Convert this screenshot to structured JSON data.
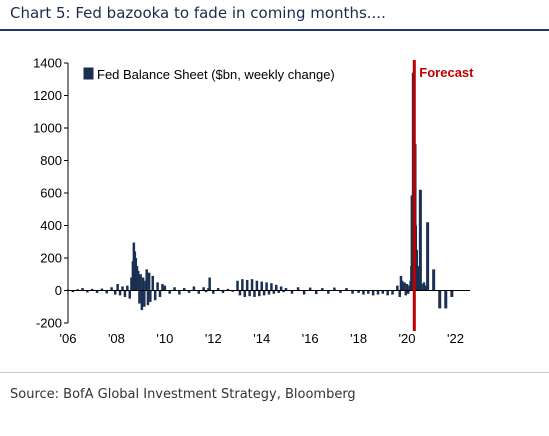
{
  "header": {
    "title": "Chart 5: Fed bazooka to fade in coming months...."
  },
  "footer": {
    "source": "Source: BofA Global Investment Strategy, Bloomberg"
  },
  "colors": {
    "bars": "#1b2f52",
    "forecast": "#c00000",
    "title": "#1a2b4a",
    "rule": "#1f3864"
  },
  "chart_data": {
    "type": "bar",
    "title": "Chart 5: Fed bazooka to fade in coming months....",
    "xlabel": "",
    "ylabel": "",
    "ylim": [
      -200,
      1400
    ],
    "xlim": [
      2006.0,
      2022.6
    ],
    "yticks": [
      1400,
      1200,
      1000,
      800,
      600,
      400,
      200,
      0,
      -200
    ],
    "ytick_labels": [
      "1400",
      "1200",
      "1000",
      "800",
      "600",
      "400",
      "200",
      "0",
      "-200"
    ],
    "xticks": [
      2006,
      2008,
      2010,
      2012,
      2014,
      2016,
      2018,
      2020,
      2022
    ],
    "xtick_labels": [
      "'06",
      "'08",
      "'10",
      "'12",
      "'14",
      "'16",
      "'18",
      "'20",
      "'22"
    ],
    "grid": false,
    "legend": {
      "position": "top-left",
      "entries": [
        "Fed Balance Sheet ($bn, weekly change)"
      ]
    },
    "annotations": [
      {
        "text": "Forecast",
        "x": 2020.3,
        "type": "vertical-line"
      }
    ],
    "series": [
      {
        "name": "Fed Balance Sheet ($bn, weekly change)",
        "points": [
          [
            2006.0,
            5
          ],
          [
            2006.2,
            -10
          ],
          [
            2006.4,
            8
          ],
          [
            2006.6,
            15
          ],
          [
            2006.8,
            -12
          ],
          [
            2007.0,
            10
          ],
          [
            2007.2,
            -15
          ],
          [
            2007.4,
            12
          ],
          [
            2007.6,
            -18
          ],
          [
            2007.8,
            20
          ],
          [
            2007.95,
            -25
          ],
          [
            2008.05,
            40
          ],
          [
            2008.15,
            -30
          ],
          [
            2008.25,
            25
          ],
          [
            2008.35,
            -40
          ],
          [
            2008.45,
            30
          ],
          [
            2008.55,
            -50
          ],
          [
            2008.62,
            80
          ],
          [
            2008.68,
            180
          ],
          [
            2008.72,
            295
          ],
          [
            2008.76,
            240
          ],
          [
            2008.8,
            200
          ],
          [
            2008.85,
            150
          ],
          [
            2008.9,
            120
          ],
          [
            2008.95,
            -80
          ],
          [
            2009.0,
            100
          ],
          [
            2009.05,
            -120
          ],
          [
            2009.1,
            80
          ],
          [
            2009.15,
            -100
          ],
          [
            2009.2,
            60
          ],
          [
            2009.25,
            130
          ],
          [
            2009.3,
            -90
          ],
          [
            2009.35,
            110
          ],
          [
            2009.4,
            -70
          ],
          [
            2009.5,
            90
          ],
          [
            2009.6,
            -60
          ],
          [
            2009.7,
            50
          ],
          [
            2009.8,
            -40
          ],
          [
            2009.9,
            40
          ],
          [
            2010.0,
            30
          ],
          [
            2010.2,
            -20
          ],
          [
            2010.4,
            20
          ],
          [
            2010.6,
            -25
          ],
          [
            2010.8,
            15
          ],
          [
            2011.0,
            -15
          ],
          [
            2011.2,
            25
          ],
          [
            2011.4,
            -20
          ],
          [
            2011.6,
            20
          ],
          [
            2011.7,
            -10
          ],
          [
            2011.8,
            15
          ],
          [
            2011.85,
            80
          ],
          [
            2012.0,
            -20
          ],
          [
            2012.2,
            15
          ],
          [
            2012.4,
            -15
          ],
          [
            2012.6,
            10
          ],
          [
            2012.8,
            -8
          ],
          [
            2013.0,
            60
          ],
          [
            2013.1,
            -30
          ],
          [
            2013.2,
            70
          ],
          [
            2013.3,
            -40
          ],
          [
            2013.4,
            65
          ],
          [
            2013.5,
            -35
          ],
          [
            2013.6,
            70
          ],
          [
            2013.7,
            -40
          ],
          [
            2013.8,
            60
          ],
          [
            2013.9,
            -35
          ],
          [
            2014.0,
            55
          ],
          [
            2014.1,
            -30
          ],
          [
            2014.2,
            50
          ],
          [
            2014.3,
            -25
          ],
          [
            2014.4,
            45
          ],
          [
            2014.5,
            -20
          ],
          [
            2014.6,
            35
          ],
          [
            2014.7,
            -15
          ],
          [
            2014.8,
            25
          ],
          [
            2014.9,
            -10
          ],
          [
            2015.0,
            15
          ],
          [
            2015.25,
            -20
          ],
          [
            2015.5,
            20
          ],
          [
            2015.75,
            -25
          ],
          [
            2016.0,
            18
          ],
          [
            2016.25,
            -22
          ],
          [
            2016.5,
            15
          ],
          [
            2016.75,
            -20
          ],
          [
            2017.0,
            18
          ],
          [
            2017.25,
            -15
          ],
          [
            2017.5,
            15
          ],
          [
            2017.75,
            -20
          ],
          [
            2018.0,
            -15
          ],
          [
            2018.2,
            -25
          ],
          [
            2018.4,
            -20
          ],
          [
            2018.6,
            -30
          ],
          [
            2018.8,
            -25
          ],
          [
            2019.0,
            -20
          ],
          [
            2019.2,
            -30
          ],
          [
            2019.4,
            -25
          ],
          [
            2019.6,
            30
          ],
          [
            2019.7,
            -40
          ],
          [
            2019.75,
            90
          ],
          [
            2019.8,
            60
          ],
          [
            2019.85,
            40
          ],
          [
            2019.9,
            50
          ],
          [
            2019.95,
            -30
          ],
          [
            2020.0,
            40
          ],
          [
            2020.05,
            -20
          ],
          [
            2020.1,
            30
          ],
          [
            2020.15,
            60
          ],
          [
            2020.18,
            150
          ],
          [
            2020.2,
            585
          ],
          [
            2020.22,
            400
          ],
          [
            2020.25,
            1340
          ],
          [
            2020.28,
            950
          ],
          [
            2020.32,
            700
          ],
          [
            2020.36,
            400
          ],
          [
            2020.4,
            250
          ],
          [
            2020.45,
            150
          ],
          [
            2020.5,
            100
          ],
          [
            2020.55,
            60
          ],
          [
            2020.6,
            40
          ],
          [
            2020.7,
            50
          ],
          [
            2020.75,
            30
          ],
          [
            2020.33,
            900
          ],
          [
            2020.55,
            620
          ],
          [
            2020.85,
            420
          ],
          [
            2021.1,
            130
          ],
          [
            2021.35,
            -110
          ],
          [
            2021.6,
            -110
          ],
          [
            2021.85,
            -40
          ]
        ]
      }
    ]
  }
}
